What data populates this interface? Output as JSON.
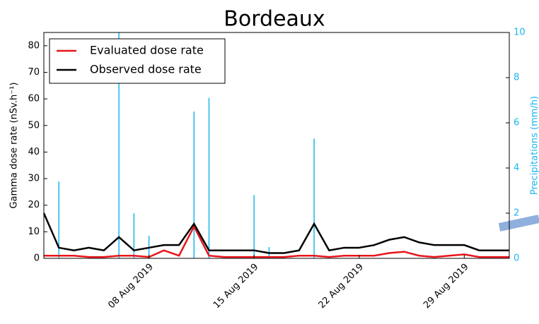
{
  "chart_data": {
    "type": "line",
    "title": "Bordeaux",
    "y_label": "Gamma dose rate (nSv.h⁻¹)",
    "y2_label": "Precipitations (mm/h)",
    "x": [
      "2019-08-01",
      "2019-08-02",
      "2019-08-03",
      "2019-08-04",
      "2019-08-05",
      "2019-08-06",
      "2019-08-07",
      "2019-08-08",
      "2019-08-09",
      "2019-08-10",
      "2019-08-11",
      "2019-08-12",
      "2019-08-13",
      "2019-08-14",
      "2019-08-15",
      "2019-08-16",
      "2019-08-17",
      "2019-08-18",
      "2019-08-19",
      "2019-08-20",
      "2019-08-21",
      "2019-08-22",
      "2019-08-23",
      "2019-08-24",
      "2019-08-25",
      "2019-08-26",
      "2019-08-27",
      "2019-08-28",
      "2019-08-29",
      "2019-08-30",
      "2019-08-31",
      "2019-09-01"
    ],
    "xlim": [
      "2019-08-01",
      "2019-09-01"
    ],
    "xticks": [
      {
        "value": "2019-08-08",
        "label": "08 Aug 2019"
      },
      {
        "value": "2019-08-15",
        "label": "15 Aug 2019"
      },
      {
        "value": "2019-08-22",
        "label": "22 Aug 2019"
      },
      {
        "value": "2019-08-29",
        "label": "29 Aug 2019"
      }
    ],
    "ylim": [
      0,
      85
    ],
    "yticks": [
      0,
      10,
      20,
      30,
      40,
      50,
      60,
      70,
      80
    ],
    "y2lim": [
      0,
      10
    ],
    "y2ticks": [
      0,
      2,
      4,
      6,
      8,
      10
    ],
    "legend": "upper left",
    "series": [
      {
        "name": "Evaluated dose rate",
        "color": "#e8141a",
        "values": [
          1,
          1,
          1,
          0.5,
          0.5,
          1,
          1,
          0.5,
          3,
          1,
          12,
          1,
          0.5,
          0.5,
          0.5,
          0.5,
          0.5,
          1,
          1,
          0.5,
          1,
          1,
          1,
          2,
          2.5,
          1,
          0.5,
          1,
          1.5,
          0.5,
          0.5,
          0.5
        ]
      },
      {
        "name": "Observed dose rate",
        "color": "#000000",
        "values": [
          17,
          4,
          3,
          4,
          3,
          8,
          3,
          4,
          5,
          5,
          13,
          3,
          3,
          3,
          3,
          2,
          2,
          3,
          13,
          3,
          4,
          4,
          5,
          7,
          8,
          6,
          5,
          5,
          5,
          3,
          3,
          3
        ]
      }
    ],
    "precipitation": {
      "axis": "y2",
      "color": "#1ab6f0",
      "values": [
        0,
        3.4,
        0,
        0,
        0,
        10,
        2,
        1,
        0,
        0,
        6.5,
        7.1,
        0,
        0,
        2.8,
        0.5,
        0,
        0,
        5.3,
        0,
        0,
        0,
        0,
        0,
        0,
        0,
        0,
        0,
        0,
        0,
        0,
        0
      ]
    }
  }
}
